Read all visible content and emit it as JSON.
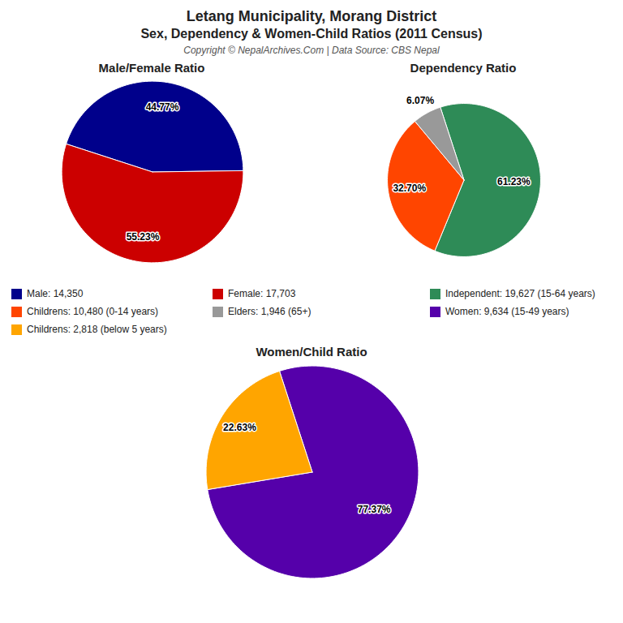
{
  "title": "Letang Municipality, Morang District",
  "subtitle": "Sex, Dependency & Women-Child Ratios (2011 Census)",
  "annotations": [
    "Copyright © NepalArchives.Com | Data Source: CBS Nepal"
  ],
  "chart_data": [
    {
      "type": "pie",
      "title": "Male/Female Ratio",
      "categories": [
        "Male: 14,350",
        "Female: 17,703"
      ],
      "values": [
        44.77,
        55.23
      ],
      "value_labels": [
        "44.77%",
        "55.23%"
      ],
      "colors": [
        "#00008B",
        "#CC0000"
      ],
      "data_labels": true
    },
    {
      "type": "pie",
      "title": "Dependency Ratio",
      "categories": [
        "Independent: 19,627 (15-64 years)",
        "Childrens: 10,480 (0-14 years)",
        "Elders: 1,946 (65+)"
      ],
      "values": [
        61.23,
        32.7,
        6.07
      ],
      "value_labels": [
        "61.23%",
        "32.70%",
        "6.07%"
      ],
      "colors": [
        "#2E8B57",
        "#FF4500",
        "#999999"
      ],
      "data_labels": true
    },
    {
      "type": "pie",
      "title": "Women/Child Ratio",
      "categories": [
        "Women: 9,634 (15-49 years)",
        "Childrens: 2,818 (below 5 years)"
      ],
      "values": [
        77.37,
        22.63
      ],
      "value_labels": [
        "77.37%",
        "22.63%"
      ],
      "colors": [
        "#5500AA",
        "#FFA500"
      ],
      "data_labels": true
    }
  ]
}
